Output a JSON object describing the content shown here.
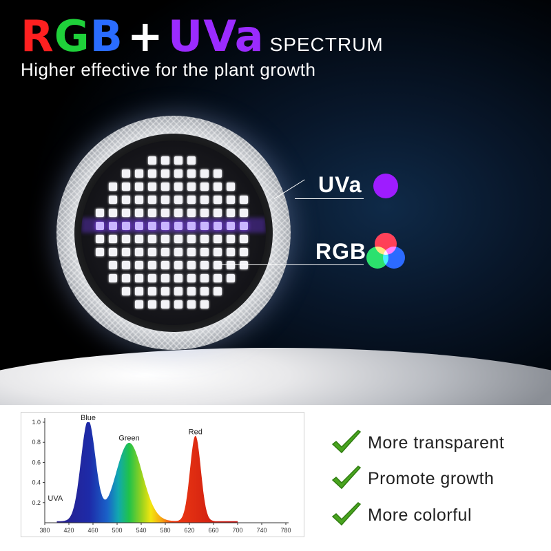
{
  "headline": {
    "r": "R",
    "g": "G",
    "b": "B",
    "plus": "+",
    "uva": "UVa",
    "spectrum": "SPECTRUM"
  },
  "subline": "Higher effective for the plant growth",
  "callouts": {
    "uva": "UVa",
    "rgb": "RGB"
  },
  "colors": {
    "red": "#ff2020",
    "green": "#1fd13a",
    "blue": "#2a6cff",
    "uva": "#9b2bff"
  },
  "features": [
    "More transparent",
    "Promote growth",
    "More colorful"
  ],
  "feature_icon": "green-check-icon",
  "chart_data": {
    "type": "area",
    "title": "",
    "xlabel": "",
    "ylabel": "",
    "xlim": [
      380,
      780
    ],
    "ylim": [
      0,
      1.0
    ],
    "x_ticks": [
      380,
      420,
      460,
      500,
      540,
      580,
      620,
      660,
      700,
      740,
      780
    ],
    "y_ticks": [
      0.2,
      0.4,
      0.6,
      0.8,
      1.0
    ],
    "annotations": [
      {
        "text": "UVA",
        "x": 385,
        "y": 0.22
      },
      {
        "text": "Blue",
        "x": 452,
        "y": 1.02
      },
      {
        "text": "Green",
        "x": 520,
        "y": 0.82
      },
      {
        "text": "Red",
        "x": 630,
        "y": 0.88
      }
    ],
    "peaks": [
      {
        "name": "Blue",
        "center": 452,
        "width": 12,
        "height": 1.0
      },
      {
        "name": "Green",
        "center": 520,
        "width": 22,
        "height": 0.78
      },
      {
        "name": "Red",
        "center": 630,
        "width": 9,
        "height": 0.85
      }
    ],
    "grid": false,
    "legend": "none"
  }
}
